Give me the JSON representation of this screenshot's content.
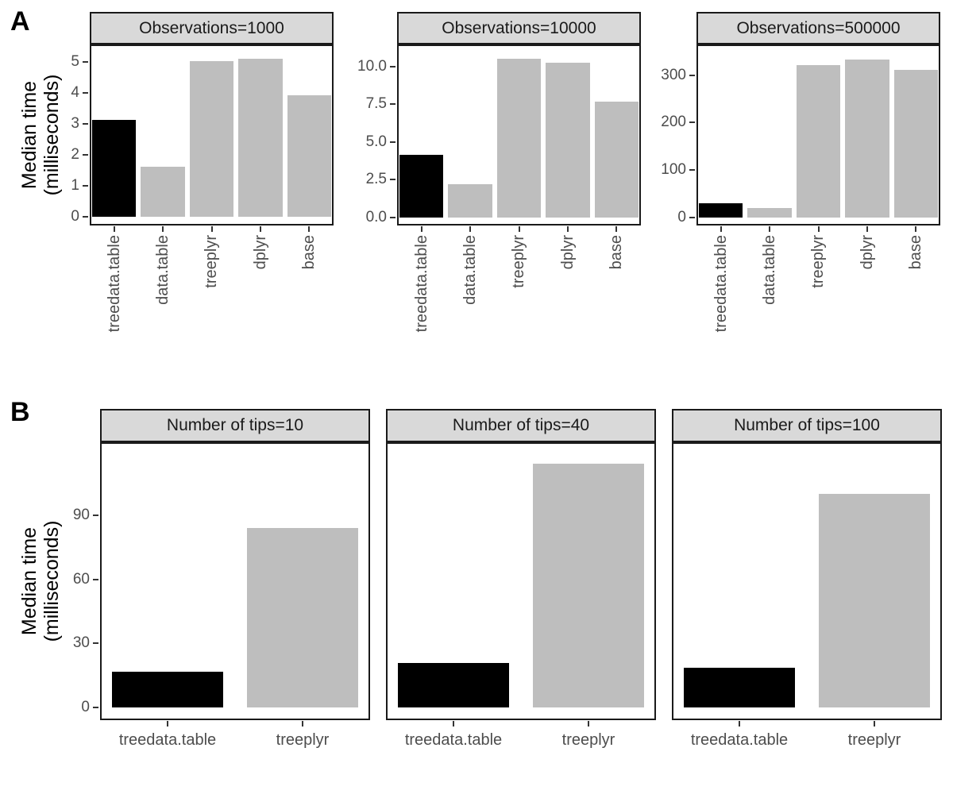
{
  "figure": {
    "panel_a_label": "A",
    "panel_b_label": "B",
    "y_axis_title_line1": "Median time",
    "y_axis_title_line2": "(milliseconds)"
  },
  "colors": {
    "highlight_bar": "#000000",
    "default_bar": "#bebebe",
    "strip_background": "#d9d9d9",
    "panel_border": "#1a1a1a",
    "tick_text": "#4d4d4d"
  },
  "chart_data": [
    {
      "panel": "A",
      "type": "bar",
      "title": "",
      "xlabel": "",
      "ylabel": "Median time (milliseconds)",
      "facet_variable": "Observations",
      "grid": false,
      "legend": "none",
      "categories": [
        "treedata.table",
        "data.table",
        "treeplyr",
        "dplyr",
        "base"
      ],
      "bar_colors": [
        "highlight",
        "default",
        "default",
        "default",
        "default"
      ],
      "facets": [
        {
          "label": "Observations=1000",
          "values": [
            3.14,
            1.63,
            5.02,
            5.1,
            3.92
          ],
          "yticks": [
            0,
            1,
            2,
            3,
            4,
            5
          ],
          "ytick_labels": [
            "0",
            "1",
            "2",
            "3",
            "4",
            "5"
          ],
          "ylim": [
            -0.27,
            5.56
          ]
        },
        {
          "label": "Observations=10000",
          "values": [
            4.15,
            2.2,
            10.5,
            10.25,
            7.65
          ],
          "yticks": [
            0,
            2.5,
            5,
            7.5,
            10
          ],
          "ytick_labels": [
            "0.0",
            "2.5",
            "5.0",
            "7.5",
            "10.0"
          ],
          "ylim": [
            -0.55,
            11.45
          ]
        },
        {
          "label": "Observations=500000",
          "values": [
            30,
            20,
            322,
            333,
            311
          ],
          "yticks": [
            0,
            100,
            200,
            300
          ],
          "ytick_labels": [
            "0",
            "100",
            "200",
            "300"
          ],
          "ylim": [
            -17,
            365
          ]
        }
      ]
    },
    {
      "panel": "B",
      "type": "bar",
      "title": "",
      "xlabel": "",
      "ylabel": "Median time (milliseconds)",
      "facet_variable": "Number of tips",
      "grid": false,
      "legend": "none",
      "categories": [
        "treedata.table",
        "treeplyr"
      ],
      "bar_colors": [
        "highlight",
        "default"
      ],
      "yticks": [
        0,
        30,
        60,
        90
      ],
      "ytick_labels": [
        "0",
        "30",
        "60",
        "90"
      ],
      "ylim": [
        -5.8,
        124
      ],
      "facets": [
        {
          "label": "Number of tips=10",
          "values": [
            17,
            84
          ]
        },
        {
          "label": "Number of tips=40",
          "values": [
            21,
            114
          ]
        },
        {
          "label": "Number of tips=100",
          "values": [
            18.5,
            100
          ]
        }
      ]
    }
  ]
}
